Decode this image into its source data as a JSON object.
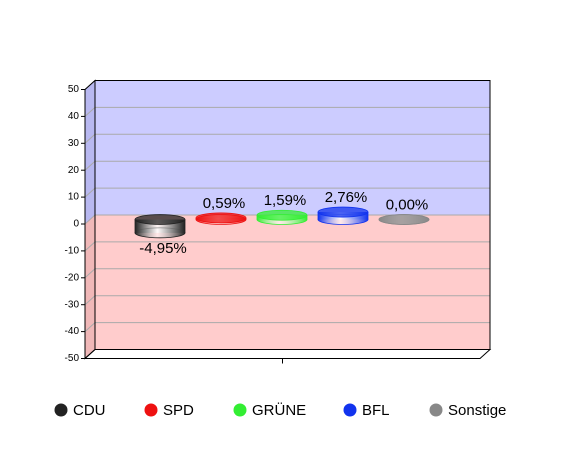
{
  "chart_data": {
    "type": "bar",
    "categories": [
      "CDU",
      "SPD",
      "GRÜNE",
      "BFL",
      "Sonstige"
    ],
    "values": [
      -4.95,
      0.59,
      1.59,
      2.76,
      0.0
    ],
    "value_labels": [
      "-4,95%",
      "0,59%",
      "1,59%",
      "2,76%",
      "0,00%"
    ],
    "colors": [
      "#222222",
      "#ee1111",
      "#33ee33",
      "#1133ee",
      "#888888"
    ],
    "ylim": [
      -50,
      50
    ],
    "yticks": [
      -50,
      -40,
      -30,
      -20,
      -10,
      0,
      10,
      20,
      30,
      40,
      50
    ],
    "grid": true
  }
}
